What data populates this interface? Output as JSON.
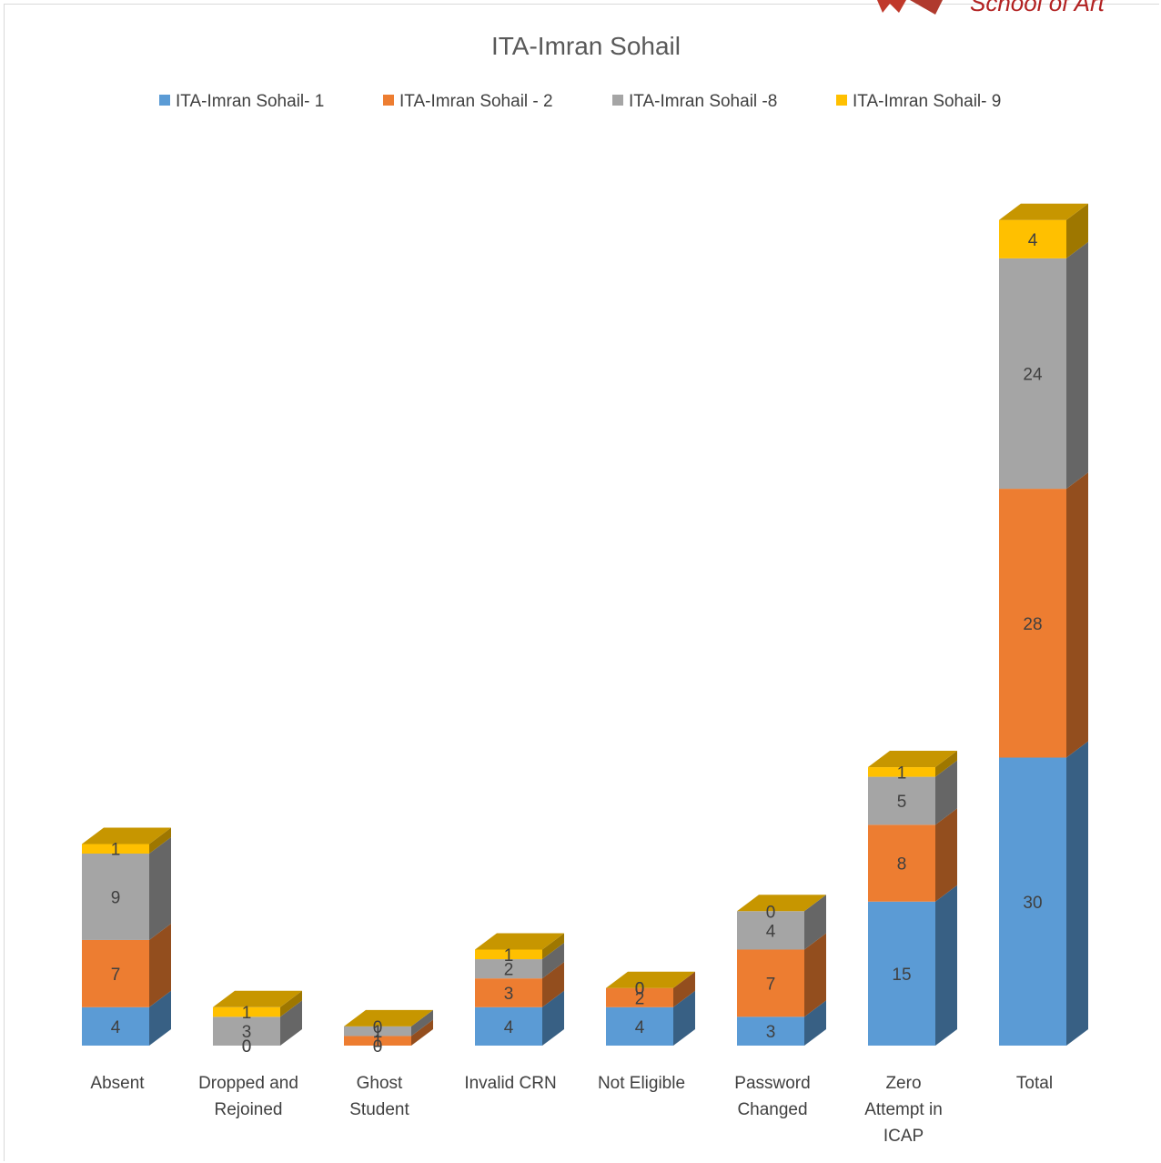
{
  "chart_data": {
    "type": "bar",
    "stacked": true,
    "three_d": true,
    "title": "ITA-Imran Sohail",
    "legend_position": "top",
    "categories": [
      [
        "Absent"
      ],
      [
        "Dropped and",
        "Rejoined"
      ],
      [
        "Ghost",
        "Student"
      ],
      [
        "Invalid CRN"
      ],
      [
        "Not Eligible"
      ],
      [
        "Password",
        "Changed"
      ],
      [
        "Zero",
        "Attempt in",
        "ICAP"
      ],
      [
        "Total"
      ]
    ],
    "series": [
      {
        "name": "ITA-Imran Sohail- 1",
        "color": "#5b9bd5",
        "values": [
          4,
          0,
          0,
          4,
          4,
          3,
          15,
          30
        ]
      },
      {
        "name": "ITA-Imran Sohail - 2",
        "color": "#ed7d31",
        "values": [
          7,
          0,
          1,
          3,
          2,
          7,
          8,
          28
        ]
      },
      {
        "name": "ITA-Imran Sohail -8",
        "color": "#a5a5a5",
        "values": [
          9,
          3,
          1,
          2,
          0,
          4,
          5,
          24
        ]
      },
      {
        "name": "ITA-Imran Sohail- 9",
        "color": "#ffc000",
        "values": [
          1,
          1,
          0,
          1,
          0,
          0,
          1,
          4
        ]
      }
    ],
    "ylim": [
      0,
      86
    ],
    "grid": false,
    "axis_visible": false
  }
}
